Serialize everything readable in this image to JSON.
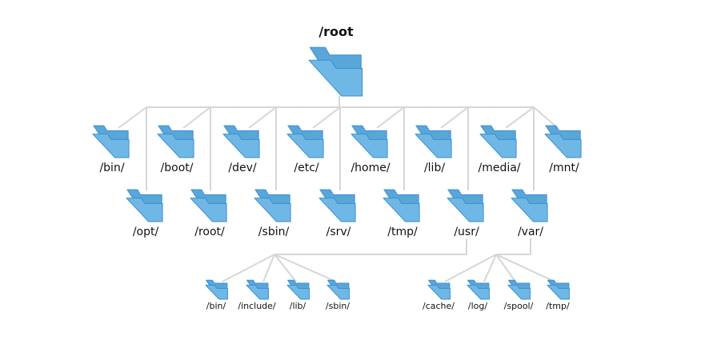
{
  "root": {
    "label": "/root"
  },
  "top_row": [
    "/bin/",
    "/boot/",
    "/dev/",
    "/etc/",
    "/home/",
    "/lib/",
    "/media/",
    "/mnt/"
  ],
  "second_row": [
    "/opt/",
    "/root/",
    "/sbin/",
    "/srv/",
    "/tmp/",
    "/usr/",
    "/var/"
  ],
  "usr_children": [
    "/bin/",
    "/include/",
    "/lib/",
    "/sbin/"
  ],
  "var_children": [
    "/cache/",
    "/log/",
    "/spool/",
    "/tmp/"
  ],
  "colors": {
    "folder_front": "#6fb8e6",
    "folder_back": "#58a6da",
    "folder_outline": "#3d8fcf",
    "connector": "#d6d6d6"
  },
  "icons": {
    "folder": "folder-icon"
  }
}
